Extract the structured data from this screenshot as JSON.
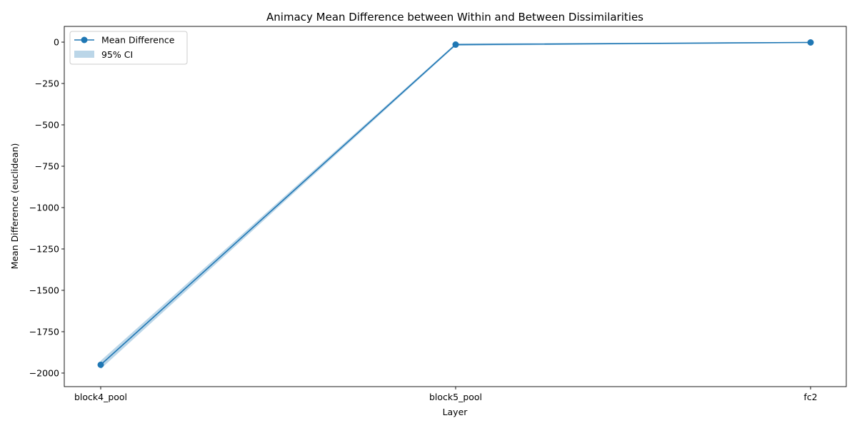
{
  "chart_data": {
    "type": "line",
    "title": "Animacy Mean Difference between Within and Between Dissimilarities",
    "xlabel": "Layer",
    "ylabel": "Mean Difference (euclidean)",
    "categories": [
      "block4_pool",
      "block5_pool",
      "fc2"
    ],
    "series": [
      {
        "name": "Mean Difference",
        "values": [
          -1950,
          -15,
          -2
        ],
        "ci_lower": [
          -1975,
          -22,
          -5
        ],
        "ci_upper": [
          -1925,
          -8,
          1
        ],
        "color": "#1f77b4"
      }
    ],
    "ci_label": "95% CI",
    "ci_color": "#1f77b4",
    "yticks": [
      0,
      -250,
      -500,
      -750,
      -1000,
      -1250,
      -1500,
      -1750,
      -2000
    ],
    "ytick_labels": [
      "0",
      "−250",
      "−500",
      "−750",
      "−1000",
      "−1250",
      "−1500",
      "−1750",
      "−2000"
    ],
    "ylim": [
      -2082,
      95
    ],
    "grid": false,
    "legend_position": "top-left"
  }
}
